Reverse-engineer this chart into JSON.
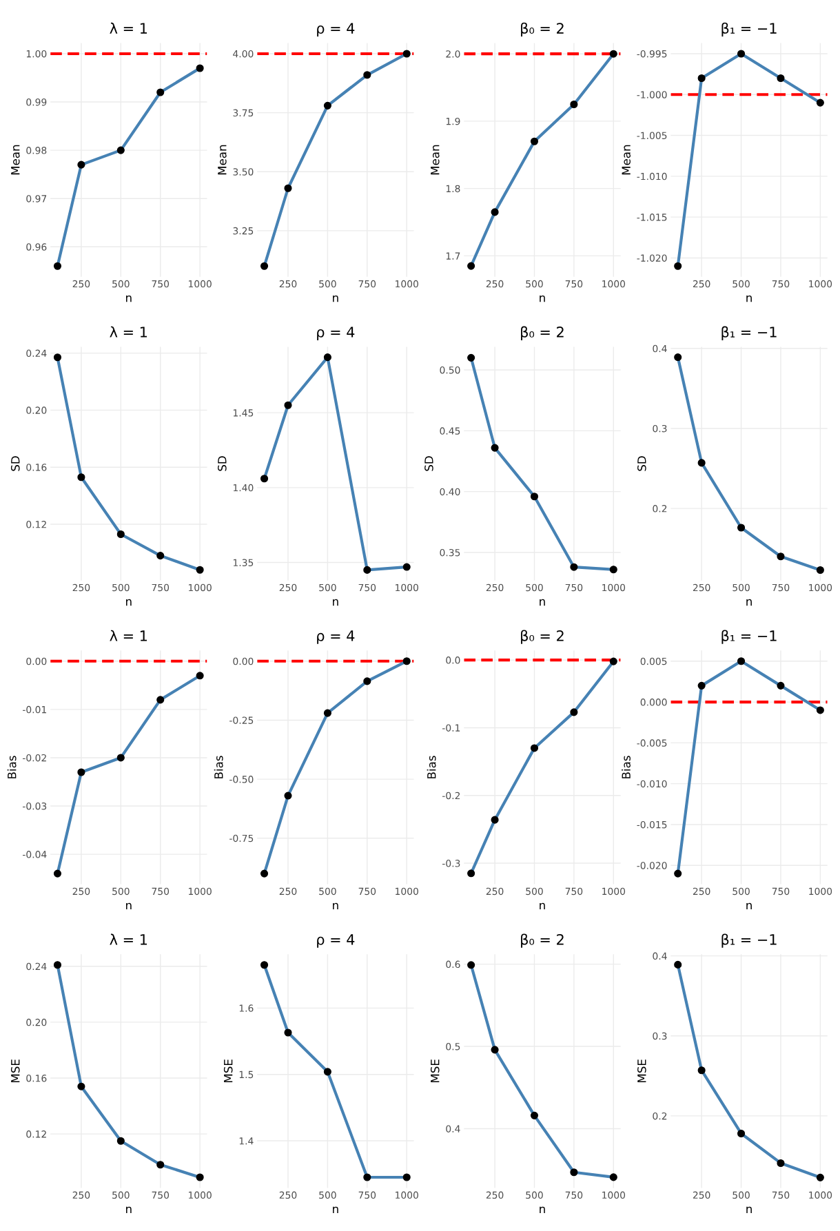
{
  "chart_data": [
    {
      "type": "line",
      "title": "λ = 1",
      "xlabel": "n",
      "ylabel": "Mean",
      "x": [
        100,
        250,
        500,
        750,
        1000
      ],
      "series": [
        {
          "color": "#4682b4",
          "values": [
            0.956,
            0.977,
            0.98,
            0.992,
            0.997
          ]
        }
      ],
      "marker": "circle",
      "grid": true,
      "xlim": [
        55,
        1045
      ],
      "xticks": [
        250,
        500,
        750,
        1000
      ],
      "ylim": [
        0.9538,
        1.0022
      ],
      "yticks": [
        {
          "value": 0.96,
          "label": "0.96"
        },
        {
          "value": 0.97,
          "label": "0.97"
        },
        {
          "value": 0.98,
          "label": "0.98"
        },
        {
          "value": 0.99,
          "label": "0.99"
        },
        {
          "value": 1.0,
          "label": "1.00"
        }
      ],
      "ref_lines": [
        {
          "axis": "y",
          "value": 1,
          "color": "#ff0000",
          "line_style": "dashed"
        }
      ]
    },
    {
      "type": "line",
      "title": "ρ = 4",
      "xlabel": "n",
      "ylabel": "Mean",
      "x": [
        100,
        250,
        500,
        750,
        1000
      ],
      "series": [
        {
          "color": "#4682b4",
          "values": [
            3.1,
            3.43,
            3.78,
            3.91,
            4.0
          ]
        }
      ],
      "marker": "circle",
      "grid": true,
      "xlim": [
        55,
        1045
      ],
      "xticks": [
        250,
        500,
        750,
        1000
      ],
      "ylim": [
        3.055,
        4.045
      ],
      "yticks": [
        {
          "value": 3.25,
          "label": "3.25"
        },
        {
          "value": 3.5,
          "label": "3.50"
        },
        {
          "value": 3.75,
          "label": "3.75"
        },
        {
          "value": 4.0,
          "label": "4.00"
        }
      ],
      "ref_lines": [
        {
          "axis": "y",
          "value": 4,
          "color": "#ff0000",
          "line_style": "dashed"
        }
      ]
    },
    {
      "type": "line",
      "title": "β₀ = 2",
      "xlabel": "n",
      "ylabel": "Mean",
      "x": [
        100,
        250,
        500,
        750,
        1000
      ],
      "series": [
        {
          "color": "#4682b4",
          "values": [
            1.685,
            1.765,
            1.87,
            1.925,
            2.0
          ]
        }
      ],
      "marker": "circle",
      "grid": true,
      "xlim": [
        55,
        1045
      ],
      "xticks": [
        250,
        500,
        750,
        1000
      ],
      "ylim": [
        1.669,
        2.016
      ],
      "yticks": [
        {
          "value": 1.7,
          "label": "1.7"
        },
        {
          "value": 1.8,
          "label": "1.8"
        },
        {
          "value": 1.9,
          "label": "1.9"
        },
        {
          "value": 2.0,
          "label": "2.0"
        }
      ],
      "ref_lines": [
        {
          "axis": "y",
          "value": 2,
          "color": "#ff0000",
          "line_style": "dashed"
        }
      ]
    },
    {
      "type": "line",
      "title": "β₁ = −1",
      "xlabel": "n",
      "ylabel": "Mean",
      "x": [
        100,
        250,
        500,
        750,
        1000
      ],
      "series": [
        {
          "color": "#4682b4",
          "values": [
            -1.021,
            -0.998,
            -0.995,
            -0.998,
            -1.001
          ]
        }
      ],
      "marker": "circle",
      "grid": true,
      "xlim": [
        55,
        1045
      ],
      "xticks": [
        250,
        500,
        750,
        1000
      ],
      "ylim": [
        -1.0223,
        -0.9937
      ],
      "yticks": [
        {
          "value": -1.02,
          "label": "-1.020"
        },
        {
          "value": -1.015,
          "label": "-1.015"
        },
        {
          "value": -1.01,
          "label": "-1.010"
        },
        {
          "value": -1.005,
          "label": "-1.005"
        },
        {
          "value": -1.0,
          "label": "-1.000"
        },
        {
          "value": -0.995,
          "label": "-0.995"
        }
      ],
      "ref_lines": [
        {
          "axis": "y",
          "value": -1,
          "color": "#ff0000",
          "line_style": "dashed"
        }
      ]
    },
    {
      "type": "line",
      "title": "λ = 1",
      "xlabel": "n",
      "ylabel": "SD",
      "x": [
        100,
        250,
        500,
        750,
        1000
      ],
      "series": [
        {
          "color": "#4682b4",
          "values": [
            0.237,
            0.153,
            0.113,
            0.098,
            0.088
          ]
        }
      ],
      "marker": "circle",
      "grid": true,
      "xlim": [
        55,
        1045
      ],
      "xticks": [
        250,
        500,
        750,
        1000
      ],
      "ylim": [
        0.0806,
        0.2444
      ],
      "yticks": [
        {
          "value": 0.12,
          "label": "0.12"
        },
        {
          "value": 0.16,
          "label": "0.16"
        },
        {
          "value": 0.2,
          "label": "0.20"
        },
        {
          "value": 0.24,
          "label": "0.24"
        }
      ]
    },
    {
      "type": "line",
      "title": "ρ = 4",
      "xlabel": "n",
      "ylabel": "SD",
      "x": [
        100,
        250,
        500,
        750,
        1000
      ],
      "series": [
        {
          "color": "#4682b4",
          "values": [
            1.406,
            1.455,
            1.487,
            1.345,
            1.347
          ]
        }
      ],
      "marker": "circle",
      "grid": true,
      "xlim": [
        55,
        1045
      ],
      "xticks": [
        250,
        500,
        750,
        1000
      ],
      "ylim": [
        1.338,
        1.494
      ],
      "yticks": [
        {
          "value": 1.35,
          "label": "1.35"
        },
        {
          "value": 1.4,
          "label": "1.40"
        },
        {
          "value": 1.45,
          "label": "1.45"
        }
      ]
    },
    {
      "type": "line",
      "title": "β₀ = 2",
      "xlabel": "n",
      "ylabel": "SD",
      "x": [
        100,
        250,
        500,
        750,
        1000
      ],
      "series": [
        {
          "color": "#4682b4",
          "values": [
            0.51,
            0.436,
            0.396,
            0.338,
            0.336
          ]
        }
      ],
      "marker": "circle",
      "grid": true,
      "xlim": [
        55,
        1045
      ],
      "xticks": [
        250,
        500,
        750,
        1000
      ],
      "ylim": [
        0.327,
        0.519
      ],
      "yticks": [
        {
          "value": 0.35,
          "label": "0.35"
        },
        {
          "value": 0.4,
          "label": "0.40"
        },
        {
          "value": 0.45,
          "label": "0.45"
        },
        {
          "value": 0.5,
          "label": "0.50"
        }
      ]
    },
    {
      "type": "line",
      "title": "β₁ = −1",
      "xlabel": "n",
      "ylabel": "SD",
      "x": [
        100,
        250,
        500,
        750,
        1000
      ],
      "series": [
        {
          "color": "#4682b4",
          "values": [
            0.389,
            0.257,
            0.176,
            0.14,
            0.123
          ]
        }
      ],
      "marker": "circle",
      "grid": true,
      "xlim": [
        55,
        1045
      ],
      "xticks": [
        250,
        500,
        750,
        1000
      ],
      "ylim": [
        0.11,
        0.402
      ],
      "yticks": [
        {
          "value": 0.2,
          "label": "0.2"
        },
        {
          "value": 0.3,
          "label": "0.3"
        },
        {
          "value": 0.4,
          "label": "0.4"
        }
      ]
    },
    {
      "type": "line",
      "title": "λ = 1",
      "xlabel": "n",
      "ylabel": "Bias",
      "x": [
        100,
        250,
        500,
        750,
        1000
      ],
      "series": [
        {
          "color": "#4682b4",
          "values": [
            -0.044,
            -0.023,
            -0.02,
            -0.008,
            -0.003
          ]
        }
      ],
      "marker": "circle",
      "grid": true,
      "xlim": [
        55,
        1045
      ],
      "xticks": [
        250,
        500,
        750,
        1000
      ],
      "ylim": [
        -0.0462,
        0.0022
      ],
      "yticks": [
        {
          "value": -0.04,
          "label": "-0.04"
        },
        {
          "value": -0.03,
          "label": "-0.03"
        },
        {
          "value": -0.02,
          "label": "-0.02"
        },
        {
          "value": -0.01,
          "label": "-0.01"
        },
        {
          "value": 0.0,
          "label": "0.00"
        }
      ],
      "ref_lines": [
        {
          "axis": "y",
          "value": 0,
          "color": "#ff0000",
          "line_style": "dashed"
        }
      ]
    },
    {
      "type": "line",
      "title": "ρ = 4",
      "xlabel": "n",
      "ylabel": "Bias",
      "x": [
        100,
        250,
        500,
        750,
        1000
      ],
      "series": [
        {
          "color": "#4682b4",
          "values": [
            -0.9,
            -0.57,
            -0.22,
            -0.085,
            0.0
          ]
        }
      ],
      "marker": "circle",
      "grid": true,
      "xlim": [
        55,
        1045
      ],
      "xticks": [
        250,
        500,
        750,
        1000
      ],
      "ylim": [
        -0.945,
        0.045
      ],
      "yticks": [
        {
          "value": -0.75,
          "label": "-0.75"
        },
        {
          "value": -0.5,
          "label": "-0.50"
        },
        {
          "value": -0.25,
          "label": "-0.25"
        },
        {
          "value": 0.0,
          "label": "0.00"
        }
      ],
      "ref_lines": [
        {
          "axis": "y",
          "value": 0,
          "color": "#ff0000",
          "line_style": "dashed"
        }
      ]
    },
    {
      "type": "line",
      "title": "β₀ = 2",
      "xlabel": "n",
      "ylabel": "Bias",
      "x": [
        100,
        250,
        500,
        750,
        1000
      ],
      "series": [
        {
          "color": "#4682b4",
          "values": [
            -0.315,
            -0.236,
            -0.13,
            -0.077,
            -0.002
          ]
        }
      ],
      "marker": "circle",
      "grid": true,
      "xlim": [
        55,
        1045
      ],
      "xticks": [
        250,
        500,
        750,
        1000
      ],
      "ylim": [
        -0.331,
        0.014
      ],
      "yticks": [
        {
          "value": -0.3,
          "label": "-0.3"
        },
        {
          "value": -0.2,
          "label": "-0.2"
        },
        {
          "value": -0.1,
          "label": "-0.1"
        },
        {
          "value": 0.0,
          "label": "0.0"
        }
      ],
      "ref_lines": [
        {
          "axis": "y",
          "value": 0,
          "color": "#ff0000",
          "line_style": "dashed"
        }
      ]
    },
    {
      "type": "line",
      "title": "β₁ = −1",
      "xlabel": "n",
      "ylabel": "Bias",
      "x": [
        100,
        250,
        500,
        750,
        1000
      ],
      "series": [
        {
          "color": "#4682b4",
          "values": [
            -0.021,
            0.002,
            0.005,
            0.002,
            -0.001
          ]
        }
      ],
      "marker": "circle",
      "grid": true,
      "xlim": [
        55,
        1045
      ],
      "xticks": [
        250,
        500,
        750,
        1000
      ],
      "ylim": [
        -0.0223,
        0.0063
      ],
      "yticks": [
        {
          "value": -0.02,
          "label": "-0.020"
        },
        {
          "value": -0.015,
          "label": "-0.015"
        },
        {
          "value": -0.01,
          "label": "-0.010"
        },
        {
          "value": -0.005,
          "label": "-0.005"
        },
        {
          "value": 0.0,
          "label": "0.000"
        },
        {
          "value": 0.005,
          "label": "0.005"
        }
      ],
      "ref_lines": [
        {
          "axis": "y",
          "value": 0,
          "color": "#ff0000",
          "line_style": "dashed"
        }
      ]
    },
    {
      "type": "line",
      "title": "λ = 1",
      "xlabel": "n",
      "ylabel": "MSE",
      "x": [
        100,
        250,
        500,
        750,
        1000
      ],
      "series": [
        {
          "color": "#4682b4",
          "values": [
            0.241,
            0.154,
            0.115,
            0.098,
            0.089
          ]
        }
      ],
      "marker": "circle",
      "grid": true,
      "xlim": [
        55,
        1045
      ],
      "xticks": [
        250,
        500,
        750,
        1000
      ],
      "ylim": [
        0.0814,
        0.2486
      ],
      "yticks": [
        {
          "value": 0.12,
          "label": "0.12"
        },
        {
          "value": 0.16,
          "label": "0.16"
        },
        {
          "value": 0.2,
          "label": "0.20"
        },
        {
          "value": 0.24,
          "label": "0.24"
        }
      ]
    },
    {
      "type": "line",
      "title": "ρ = 4",
      "xlabel": "n",
      "ylabel": "MSE",
      "x": [
        100,
        250,
        500,
        750,
        1000
      ],
      "series": [
        {
          "color": "#4682b4",
          "values": [
            1.665,
            1.563,
            1.504,
            1.345,
            1.345
          ]
        }
      ],
      "marker": "circle",
      "grid": true,
      "xlim": [
        55,
        1045
      ],
      "xticks": [
        250,
        500,
        750,
        1000
      ],
      "ylim": [
        1.329,
        1.681
      ],
      "yticks": [
        {
          "value": 1.4,
          "label": "1.4"
        },
        {
          "value": 1.5,
          "label": "1.5"
        },
        {
          "value": 1.6,
          "label": "1.6"
        }
      ]
    },
    {
      "type": "line",
      "title": "β₀ = 2",
      "xlabel": "n",
      "ylabel": "MSE",
      "x": [
        100,
        250,
        500,
        750,
        1000
      ],
      "series": [
        {
          "color": "#4682b4",
          "values": [
            0.599,
            0.496,
            0.416,
            0.347,
            0.341
          ]
        }
      ],
      "marker": "circle",
      "grid": true,
      "xlim": [
        55,
        1045
      ],
      "xticks": [
        250,
        500,
        750,
        1000
      ],
      "ylim": [
        0.328,
        0.612
      ],
      "yticks": [
        {
          "value": 0.4,
          "label": "0.4"
        },
        {
          "value": 0.5,
          "label": "0.5"
        },
        {
          "value": 0.6,
          "label": "0.6"
        }
      ]
    },
    {
      "type": "line",
      "title": "β₁ = −1",
      "xlabel": "n",
      "ylabel": "MSE",
      "x": [
        100,
        250,
        500,
        750,
        1000
      ],
      "series": [
        {
          "color": "#4682b4",
          "values": [
            0.389,
            0.257,
            0.178,
            0.141,
            0.123
          ]
        }
      ],
      "marker": "circle",
      "grid": true,
      "xlim": [
        55,
        1045
      ],
      "xticks": [
        250,
        500,
        750,
        1000
      ],
      "ylim": [
        0.11,
        0.402
      ],
      "yticks": [
        {
          "value": 0.2,
          "label": "0.2"
        },
        {
          "value": 0.3,
          "label": "0.3"
        },
        {
          "value": 0.4,
          "label": "0.4"
        }
      ]
    }
  ]
}
